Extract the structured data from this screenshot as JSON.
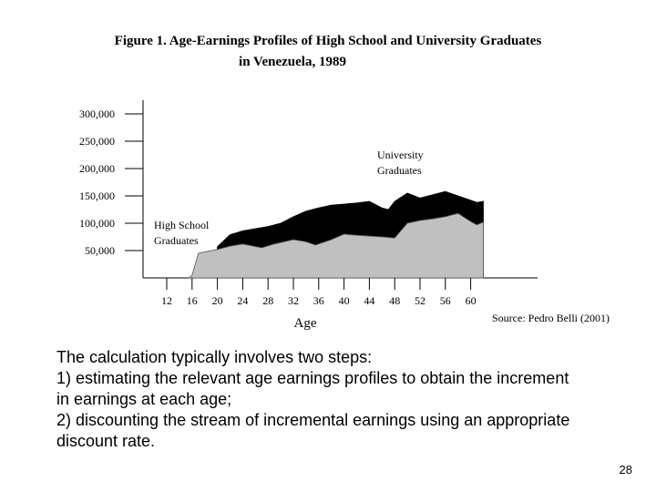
{
  "chart_data": {
    "type": "area",
    "title": "Figure 1. Age-Earnings Profiles of High School and University Graduates",
    "subtitle": "in Venezuela, 1989",
    "xlabel": "Age",
    "ylabel": "",
    "x_ticks": [
      "12",
      "16",
      "20",
      "24",
      "28",
      "32",
      "36",
      "40",
      "44",
      "48",
      "52",
      "56",
      "60"
    ],
    "y_ticks": [
      "300,000",
      "250,000",
      "200,000",
      "150,000",
      "100,000",
      "50,000"
    ],
    "ylim": [
      0,
      310000
    ],
    "xlim": [
      10,
      63
    ],
    "grid": false,
    "series": [
      {
        "name": "High School Graduates",
        "color": "#c0c0c0",
        "x": [
          15.5,
          16,
          17,
          20,
          22,
          24,
          27,
          29,
          32,
          34,
          35.5,
          38,
          40,
          42,
          46,
          48,
          50,
          52,
          54,
          56,
          58,
          60,
          61,
          62
        ],
        "y": [
          0,
          5000,
          45000,
          52000,
          58000,
          62000,
          55000,
          62000,
          70000,
          66000,
          60000,
          70000,
          80000,
          78000,
          75000,
          73000,
          100000,
          105000,
          108000,
          112000,
          118000,
          103000,
          97000,
          102000
        ]
      },
      {
        "name": "University Graduates",
        "color": "#000000",
        "x": [
          20,
          22,
          24,
          27,
          28,
          30,
          32,
          34,
          36,
          38,
          40,
          42,
          44,
          46,
          47,
          48,
          50,
          52,
          54,
          56,
          58,
          60,
          61,
          62
        ],
        "y": [
          57000,
          79000,
          86000,
          92000,
          94000,
          100000,
          112000,
          122000,
          128000,
          133000,
          135000,
          137000,
          140000,
          128000,
          125000,
          140000,
          155000,
          146000,
          152000,
          158000,
          150000,
          142000,
          138000,
          140000
        ]
      }
    ],
    "annotations": [
      {
        "lines": [
          "University",
          "Graduates"
        ]
      },
      {
        "lines": [
          "High School",
          "Graduates"
        ]
      }
    ],
    "source": "Source: Pedro Belli (2001)"
  },
  "body_lines": [
    "The calculation typically involves two steps:",
    "1)  estimating the relevant age earnings profiles to obtain the increment",
    "in earnings at each age;",
    "2) discounting the stream of incremental earnings using an appropriate",
    "discount rate."
  ],
  "page_number": "28"
}
